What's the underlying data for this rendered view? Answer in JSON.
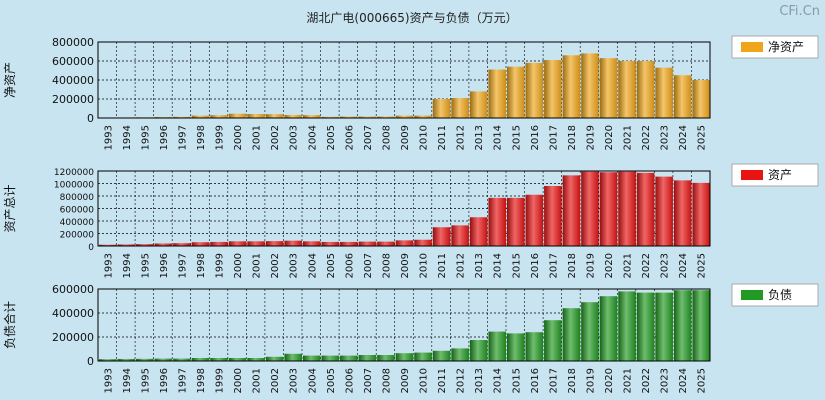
{
  "title": "湖北广电(000665)资产与负债（万元）",
  "watermark": "CFi.Cn",
  "chart_data": [
    {
      "type": "bar",
      "ylabel": "净资产",
      "legend": "净资产",
      "color": "#f0a61a",
      "ylim": [
        0,
        800000
      ],
      "yticks": [
        0,
        200000,
        400000,
        600000,
        800000
      ],
      "categories": [
        "1993",
        "1994",
        "1995",
        "1996",
        "1997",
        "1998",
        "1999",
        "2000",
        "2001",
        "2002",
        "2003",
        "2004",
        "2005",
        "2006",
        "2007",
        "2008",
        "2009",
        "2010",
        "2011",
        "2012",
        "2013",
        "2014",
        "2015",
        "2016",
        "2017",
        "2018",
        "2019",
        "2020",
        "2021",
        "2022",
        "2023",
        "2024",
        "2025"
      ],
      "values": [
        5000,
        6000,
        7000,
        10000,
        12000,
        25000,
        30000,
        45000,
        42000,
        40000,
        32000,
        30000,
        12000,
        15000,
        15000,
        15000,
        25000,
        25000,
        200000,
        210000,
        280000,
        510000,
        540000,
        580000,
        610000,
        660000,
        680000,
        630000,
        600000,
        600000,
        530000,
        450000,
        400000
      ]
    },
    {
      "type": "bar",
      "ylabel": "资产总计",
      "legend": "资产",
      "color": "#e81414",
      "ylim": [
        0,
        1200000
      ],
      "yticks": [
        0,
        200000,
        400000,
        600000,
        800000,
        1000000,
        1200000
      ],
      "categories": [
        "1993",
        "1994",
        "1995",
        "1996",
        "1997",
        "1998",
        "1999",
        "2000",
        "2001",
        "2002",
        "2003",
        "2004",
        "2005",
        "2006",
        "2007",
        "2008",
        "2009",
        "2010",
        "2011",
        "2012",
        "2013",
        "2014",
        "2015",
        "2016",
        "2017",
        "2018",
        "2019",
        "2020",
        "2021",
        "2022",
        "2023",
        "2024",
        "2025"
      ],
      "values": [
        20000,
        25000,
        30000,
        40000,
        45000,
        60000,
        65000,
        75000,
        75000,
        78000,
        85000,
        75000,
        65000,
        65000,
        70000,
        70000,
        90000,
        100000,
        300000,
        330000,
        460000,
        770000,
        770000,
        820000,
        960000,
        1130000,
        1190000,
        1180000,
        1190000,
        1170000,
        1110000,
        1050000,
        1010000
      ]
    },
    {
      "type": "bar",
      "ylabel": "负债合计",
      "legend": "负债",
      "color": "#229922",
      "ylim": [
        0,
        600000
      ],
      "yticks": [
        0,
        200000,
        400000,
        600000
      ],
      "categories": [
        "1993",
        "1994",
        "1995",
        "1996",
        "1997",
        "1998",
        "1999",
        "2000",
        "2001",
        "2002",
        "2003",
        "2004",
        "2005",
        "2006",
        "2007",
        "2008",
        "2009",
        "2010",
        "2011",
        "2012",
        "2013",
        "2014",
        "2015",
        "2016",
        "2017",
        "2018",
        "2019",
        "2020",
        "2021",
        "2022",
        "2023",
        "2024",
        "2025"
      ],
      "values": [
        15000,
        17000,
        18000,
        20000,
        20000,
        25000,
        25000,
        25000,
        25000,
        35000,
        60000,
        45000,
        45000,
        45000,
        50000,
        50000,
        65000,
        70000,
        85000,
        105000,
        175000,
        245000,
        230000,
        240000,
        340000,
        440000,
        490000,
        540000,
        580000,
        570000,
        570000,
        590000,
        590000
      ]
    }
  ]
}
